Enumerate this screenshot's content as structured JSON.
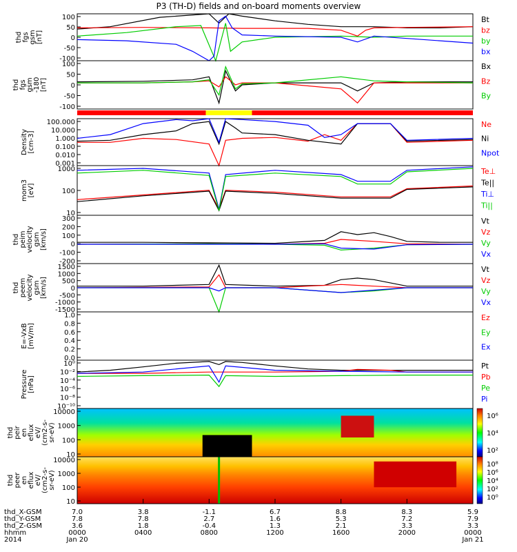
{
  "title": "P3 (TH-D) fields and on-board moments overview",
  "chart_data": [
    {
      "type": "line",
      "ylabel": [
        "thd",
        "fgs",
        "gsm",
        "[nT]"
      ],
      "ylim": [
        -100,
        100
      ],
      "yticks": [
        "100",
        "50",
        "0",
        "-50",
        "-100"
      ],
      "series": [
        {
          "name": "Bt",
          "color": "#000000",
          "x": [
            0,
            2,
            5,
            8,
            8.6,
            9.2,
            10,
            12,
            14,
            16,
            18,
            20,
            22,
            24
          ],
          "y": [
            35,
            45,
            85,
            100,
            60,
            100,
            90,
            70,
            55,
            45,
            45,
            40,
            40,
            45
          ]
        },
        {
          "name": "bz",
          "color": "#ff0000",
          "x": [
            0,
            4,
            8,
            10,
            14,
            16,
            17,
            17.5,
            18,
            20,
            24
          ],
          "y": [
            40,
            42,
            40,
            38,
            38,
            30,
            5,
            30,
            40,
            42,
            45
          ]
        },
        {
          "name": "by",
          "color": "#00cc00",
          "x": [
            0,
            3,
            6,
            7.5,
            8.4,
            9,
            9.3,
            10,
            12,
            16,
            18,
            20,
            24
          ],
          "y": [
            5,
            20,
            45,
            50,
            -100,
            60,
            -60,
            -20,
            0,
            5,
            0,
            5,
            5
          ]
        },
        {
          "name": "bx",
          "color": "#0000ff",
          "x": [
            0,
            3,
            6,
            7,
            8,
            8.3,
            8.6,
            9,
            9.4,
            10,
            12,
            16,
            17,
            18,
            20,
            24
          ],
          "y": [
            -10,
            -15,
            -30,
            -60,
            -100,
            -80,
            70,
            90,
            40,
            10,
            5,
            0,
            -20,
            5,
            -5,
            -25
          ]
        }
      ]
    },
    {
      "type": "line",
      "ylabel": [
        "thd",
        "fgs",
        "gsm",
        "-180",
        "[nT]"
      ],
      "ylim": [
        -130,
        110
      ],
      "yticks": [
        "100",
        "50",
        "0",
        "-50",
        "-100"
      ],
      "series": [
        {
          "name": "Bx",
          "color": "#000000",
          "x": [
            0,
            4,
            7,
            8,
            8.6,
            9,
            9.6,
            10,
            12,
            16,
            17,
            18,
            20,
            24
          ],
          "y": [
            5,
            8,
            15,
            30,
            -100,
            60,
            -40,
            -10,
            0,
            0,
            -40,
            0,
            5,
            5
          ]
        },
        {
          "name": "Bz",
          "color": "#ff0000",
          "x": [
            0,
            4,
            7,
            8,
            8.6,
            9,
            9.6,
            10,
            12,
            16,
            17,
            18,
            20,
            24
          ],
          "y": [
            0,
            0,
            5,
            10,
            -20,
            30,
            -10,
            0,
            0,
            -30,
            -100,
            0,
            0,
            0
          ]
        },
        {
          "name": "By",
          "color": "#00cc00",
          "x": [
            0,
            4,
            7,
            8,
            8.6,
            9,
            9.6,
            10,
            12,
            16,
            17,
            18,
            20,
            24
          ],
          "y": [
            0,
            0,
            5,
            15,
            -60,
            80,
            -30,
            -5,
            0,
            30,
            20,
            10,
            5,
            0
          ]
        }
      ]
    },
    {
      "type": "line",
      "ylabel": [
        "Density",
        "[cm-3]"
      ],
      "yscale": "log",
      "ylim": [
        0.001,
        100
      ],
      "yticks": [
        "100.000",
        "10.000",
        "1.000",
        "0.100",
        "0.010",
        "0.001"
      ],
      "series": [
        {
          "name": "Ne",
          "color": "#ff0000",
          "x": [
            0,
            2,
            4,
            6,
            8,
            8.6,
            9,
            10,
            12,
            14,
            15,
            16,
            17,
            19,
            20,
            24
          ],
          "y": [
            0.3,
            0.3,
            0.8,
            0.6,
            0.2,
            0.001,
            0.5,
            0.8,
            1.0,
            0.4,
            2.0,
            0.5,
            30,
            30,
            0.3,
            0.5
          ]
        },
        {
          "name": "Ni",
          "color": "#000000",
          "x": [
            0,
            2,
            4,
            6,
            7,
            8,
            8.6,
            9,
            9.6,
            10,
            12,
            14,
            16,
            17,
            19,
            20,
            24
          ],
          "y": [
            0.4,
            0.5,
            2.0,
            5.0,
            30,
            50,
            0.2,
            50,
            10,
            3,
            2,
            0.5,
            0.2,
            30,
            30,
            0.4,
            0.6
          ]
        },
        {
          "name": "Npot",
          "color": "#0000ff",
          "x": [
            0,
            2,
            4,
            6,
            7,
            8,
            8.6,
            9,
            10,
            12,
            14,
            15,
            16,
            17,
            19,
            20,
            24
          ],
          "y": [
            0.8,
            2,
            30,
            80,
            60,
            100,
            0.3,
            100,
            80,
            50,
            20,
            1,
            2,
            30,
            30,
            0.5,
            0.8
          ]
        }
      ]
    },
    {
      "type": "line",
      "ylabel": [
        "mom3",
        "[eV]"
      ],
      "yscale": "log",
      "ylim": [
        2,
        3000
      ],
      "yticks": [
        "1000",
        "100",
        "10"
      ],
      "series": [
        {
          "name": "Te⊥",
          "color": "#ff0000",
          "x": [
            0,
            4,
            8,
            8.6,
            9,
            12,
            16,
            17,
            19,
            20,
            24
          ],
          "y": [
            20,
            40,
            80,
            5,
            80,
            60,
            30,
            30,
            30,
            100,
            150
          ]
        },
        {
          "name": "Te||",
          "color": "#000000",
          "x": [
            0,
            4,
            8,
            8.6,
            9,
            12,
            16,
            17,
            19,
            20,
            24
          ],
          "y": [
            15,
            35,
            70,
            4,
            70,
            50,
            25,
            25,
            25,
            90,
            130
          ]
        },
        {
          "name": "Ti⊥",
          "color": "#0000ff",
          "x": [
            0,
            4,
            8,
            8.6,
            9,
            12,
            16,
            17,
            19,
            20,
            24
          ],
          "y": [
            1500,
            2000,
            1000,
            5,
            800,
            1500,
            800,
            300,
            300,
            1500,
            2500
          ]
        },
        {
          "name": "Ti||",
          "color": "#00cc00",
          "x": [
            0,
            4,
            8,
            8.6,
            9,
            12,
            16,
            17,
            19,
            20,
            24
          ],
          "y": [
            1000,
            1500,
            700,
            4,
            600,
            1000,
            600,
            200,
            200,
            1200,
            2000
          ]
        }
      ]
    },
    {
      "type": "line",
      "ylabel": [
        "thd",
        "peim",
        "velocity",
        "gsm",
        "[km/s]"
      ],
      "ylim": [
        -200,
        300
      ],
      "yticks": [
        "300",
        "200",
        "100",
        "0",
        "-100",
        "-200"
      ],
      "series": [
        {
          "name": "Vt",
          "color": "#000000",
          "x": [
            0,
            4,
            8,
            12,
            15,
            16,
            17,
            18,
            19,
            20,
            22,
            24
          ],
          "y": [
            20,
            20,
            15,
            10,
            40,
            130,
            100,
            120,
            80,
            30,
            20,
            20
          ]
        },
        {
          "name": "Vz",
          "color": "#ff0000",
          "x": [
            0,
            8,
            12,
            15,
            16,
            18,
            20,
            24
          ],
          "y": [
            0,
            5,
            0,
            10,
            50,
            30,
            5,
            0
          ]
        },
        {
          "name": "Vy",
          "color": "#00cc00",
          "x": [
            0,
            8,
            12,
            15,
            16,
            18,
            20,
            24
          ],
          "y": [
            0,
            5,
            0,
            -10,
            -60,
            -40,
            -5,
            0
          ]
        },
        {
          "name": "Vx",
          "color": "#0000ff",
          "x": [
            0,
            8,
            12,
            15,
            16,
            18,
            20,
            24
          ],
          "y": [
            0,
            0,
            0,
            5,
            -40,
            -50,
            -5,
            0
          ]
        }
      ]
    },
    {
      "type": "line",
      "ylabel": [
        "thd",
        "peem",
        "velocity",
        "gsm",
        "[km/s]"
      ],
      "ylim": [
        -1500,
        1500
      ],
      "yticks": [
        "1500",
        "1000",
        "500",
        "0",
        "-500",
        "-1000",
        "-1500"
      ],
      "series": [
        {
          "name": "Vt",
          "color": "#000000",
          "x": [
            0,
            4,
            8,
            8.6,
            9,
            12,
            15,
            16,
            17,
            18,
            20,
            24
          ],
          "y": [
            100,
            100,
            200,
            1400,
            200,
            100,
            150,
            500,
            600,
            500,
            100,
            100
          ]
        },
        {
          "name": "Vz",
          "color": "#ff0000",
          "x": [
            0,
            8,
            8.6,
            9,
            12,
            16,
            18,
            20,
            24
          ],
          "y": [
            0,
            50,
            800,
            0,
            0,
            200,
            100,
            0,
            0
          ]
        },
        {
          "name": "Vy",
          "color": "#00cc00",
          "x": [
            0,
            8,
            8.6,
            9,
            12,
            16,
            18,
            20,
            24
          ],
          "y": [
            0,
            0,
            -1500,
            0,
            0,
            -300,
            -200,
            0,
            0
          ]
        },
        {
          "name": "Vx",
          "color": "#0000ff",
          "x": [
            0,
            8,
            8.6,
            9,
            12,
            16,
            18,
            20,
            24
          ],
          "y": [
            0,
            0,
            -200,
            0,
            0,
            -300,
            -150,
            0,
            0
          ]
        }
      ]
    },
    {
      "type": "line",
      "ylabel": [
        "E=-VxB",
        "[mV/m]"
      ],
      "ylim": [
        -0.1,
        1.0
      ],
      "yticks": [
        "1.0",
        "0.8",
        "0.6",
        "0.4",
        "0.2",
        "0.0"
      ],
      "series": [
        {
          "name": "Ez",
          "color": "#ff0000",
          "x": [],
          "y": []
        },
        {
          "name": "Ey",
          "color": "#00cc00",
          "x": [],
          "y": []
        },
        {
          "name": "Ex",
          "color": "#0000ff",
          "x": [],
          "y": []
        }
      ]
    },
    {
      "type": "line",
      "ylabel": [
        "Pressure",
        "[nPa]"
      ],
      "yscale": "log",
      "ylim": [
        1e-10,
        10
      ],
      "yticks": [
        "10⁰",
        "10⁻²",
        "10⁻⁴",
        "10⁻⁶",
        "10⁻⁸",
        "10⁻¹⁰"
      ],
      "series": [
        {
          "name": "Pt",
          "color": "#000000",
          "x": [
            0,
            2,
            4,
            6,
            8,
            8.6,
            9,
            10,
            12,
            14,
            16,
            20,
            24
          ],
          "y": [
            0.02,
            0.05,
            0.3,
            2,
            5,
            1,
            5,
            3,
            0.5,
            0.1,
            0.05,
            0.05,
            0.05
          ]
        },
        {
          "name": "Pb",
          "color": "#ff0000",
          "x": [
            0,
            4,
            8,
            12,
            16,
            17,
            19,
            20,
            24
          ],
          "y": [
            0.01,
            0.01,
            0.02,
            0.02,
            0.03,
            0.08,
            0.05,
            0.02,
            0.02
          ]
        },
        {
          "name": "Pe",
          "color": "#00cc00",
          "x": [
            0,
            4,
            8,
            8.6,
            9,
            12,
            16,
            20,
            24
          ],
          "y": [
            0.002,
            0.003,
            0.004,
            1e-05,
            0.003,
            0.002,
            0.003,
            0.004,
            0.004
          ]
        },
        {
          "name": "Pi",
          "color": "#0000ff",
          "x": [
            0,
            4,
            8,
            8.6,
            9,
            12,
            16,
            20,
            24
          ],
          "y": [
            0.01,
            0.02,
            0.5,
            0.0001,
            0.5,
            0.05,
            0.03,
            0.02,
            0.02
          ]
        }
      ]
    },
    {
      "type": "heatmap",
      "ylabel": [
        "thd",
        "peir",
        "en",
        "eflux",
        "eV/",
        "(cm2-s-",
        "sr-eV)"
      ],
      "yscale": "log",
      "ylim": [
        5,
        20000
      ],
      "yticks": [
        "10000",
        "1000",
        "100",
        "10"
      ],
      "colorbar_ticks": [
        "10⁶",
        "10⁴",
        "10²"
      ]
    },
    {
      "type": "heatmap",
      "ylabel": [
        "thd",
        "peer",
        "en",
        "eflux",
        "eV/",
        "(cm2-s-",
        "sr-eV)"
      ],
      "yscale": "log",
      "ylim": [
        5,
        20000
      ],
      "yticks": [
        "10000",
        "1000",
        "100",
        "10"
      ],
      "colorbar_ticks": [
        "10⁸",
        "10⁶",
        "10⁴",
        "10²",
        "10⁰"
      ]
    }
  ],
  "xaxis": {
    "rows": [
      {
        "label": "thd_X-GSM",
        "values": [
          "7.0",
          "3.8",
          "-1.1",
          "6.7",
          "8.8",
          "8.3",
          "5.9"
        ]
      },
      {
        "label": "thd_Y-GSM",
        "values": [
          "7.8",
          "7.8",
          "2.7",
          "1.6",
          "5.3",
          "7.2",
          "7.9"
        ]
      },
      {
        "label": "thd_Z-GSM",
        "values": [
          "3.6",
          "1.8",
          "-0.4",
          "1.3",
          "2.1",
          "3.3",
          "3.3"
        ]
      },
      {
        "label": "hhmm",
        "values": [
          "0000",
          "0400",
          "0800",
          "1200",
          "1600",
          "2000",
          "0000"
        ]
      }
    ],
    "year": "2014",
    "date_start": "Jan 20",
    "date_end": "Jan 21"
  },
  "mode_bar": [
    {
      "from": 0,
      "to": 7.8,
      "color": "#ff0000"
    },
    {
      "from": 7.8,
      "to": 10.6,
      "color": "#ffff00"
    },
    {
      "from": 10.6,
      "to": 24,
      "color": "#ff0000"
    }
  ]
}
